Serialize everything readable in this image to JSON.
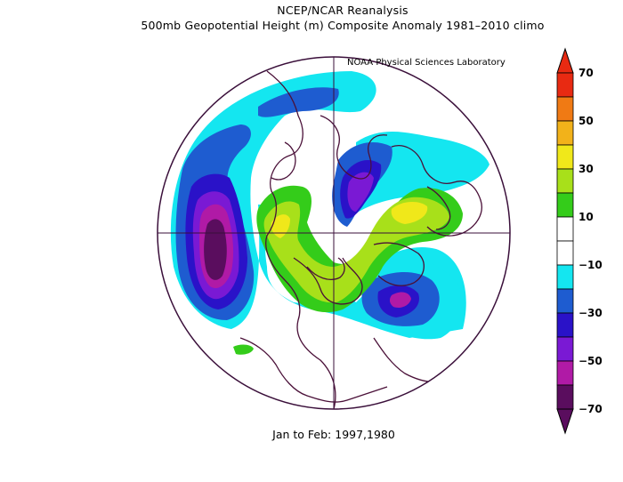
{
  "title_line1": "NCEP/NCAR Reanalysis",
  "title_line2": "500mb Geopotential Height (m) Composite Anomaly 1981–2010 climo",
  "credit": "NOAA Physical Sciences Laboratory",
  "footer": "Jan to Feb: 1997,1980",
  "colorbar": {
    "colors": [
      "#5a0d5e",
      "#b01aa6",
      "#7a19d4",
      "#2a12c8",
      "#1e5cd0",
      "#14e6f0",
      "#ffffff",
      "#ffffff",
      "#34cc1a",
      "#a8e01a",
      "#f0e81a",
      "#f2b21a",
      "#f07a14",
      "#e82a12"
    ],
    "labels": [
      "−70",
      "−50",
      "−30",
      "−10",
      "10",
      "30",
      "50",
      "70"
    ]
  }
}
